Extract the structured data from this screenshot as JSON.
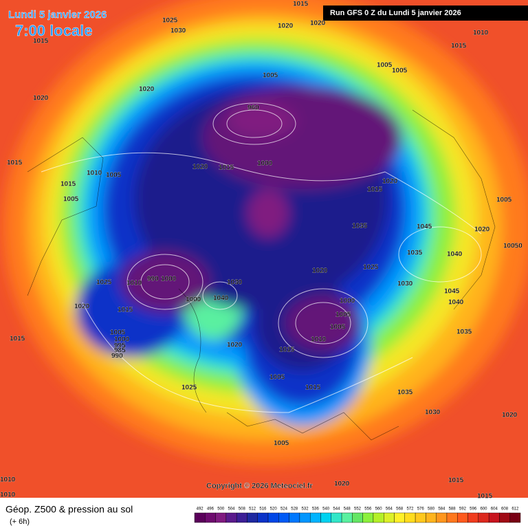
{
  "header": {
    "title": "Lundi 5 janvier 2026",
    "time": "7:00 locale",
    "run": "Run GFS 0 Z du Lundi 5 janvier 2026"
  },
  "map": {
    "isobar_labels": [
      1015,
      1025,
      1030,
      1015,
      1020,
      1020,
      1010,
      1015,
      1005,
      1005,
      1005,
      1020,
      1020,
      960,
      1015,
      1020,
      1015,
      1000,
      1010,
      1005,
      1015,
      1005,
      1020,
      1015,
      1005,
      1035,
      1045,
      1020,
      10050,
      1035,
      1040,
      1025,
      1020,
      1030,
      1045,
      1040,
      1025,
      1010,
      990,
      1000,
      1030,
      1040,
      1000,
      1020,
      1015,
      1000,
      1005,
      1005,
      1010,
      1035,
      1015,
      1005,
      1000,
      995,
      985,
      990,
      1020,
      1015,
      1005,
      1015,
      1025,
      1035,
      1030,
      1020,
      1005,
      1010,
      1010,
      1020,
      1015,
      1015
    ],
    "copyright": "Copyright © 2026 Meteociel.fr"
  },
  "legend": {
    "title": "Géop. Z500 & pression au sol",
    "lead_time": "(+ 6h)",
    "values": [
      492,
      496,
      500,
      504,
      508,
      512,
      516,
      520,
      524,
      528,
      532,
      536,
      540,
      544,
      548,
      552,
      556,
      560,
      564,
      568,
      572,
      576,
      580,
      584,
      588,
      592,
      596,
      600,
      604,
      608,
      612
    ],
    "colors": [
      "#5a005a",
      "#6e0a6e",
      "#801a80",
      "#5a1a8c",
      "#3c1e96",
      "#1e28a0",
      "#0a32c8",
      "#0046e6",
      "#005af5",
      "#0078ff",
      "#0096ff",
      "#00b4ff",
      "#00d2f0",
      "#32e6c8",
      "#5af0a0",
      "#64e664",
      "#8cf03c",
      "#b4f028",
      "#dcf028",
      "#fff028",
      "#ffdc1e",
      "#ffc81e",
      "#ffb41e",
      "#ff961e",
      "#ff781e",
      "#ff5a1e",
      "#f03c1e",
      "#dc281e",
      "#c8141e",
      "#a00a14",
      "#780014"
    ]
  }
}
